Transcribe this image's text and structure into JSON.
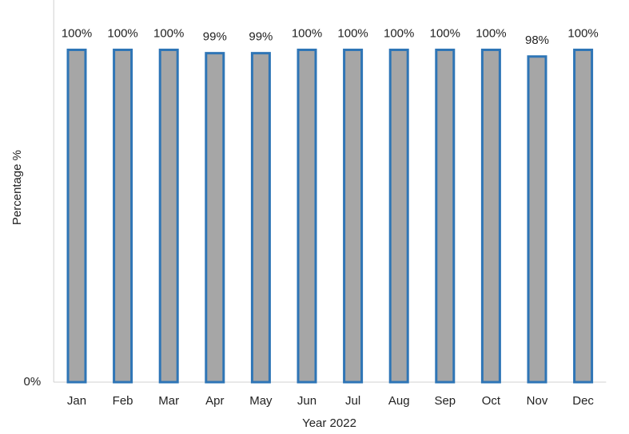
{
  "chart_data": {
    "type": "bar",
    "xlabel": "Year 2022",
    "ylabel": "Percentage %",
    "categories": [
      "Jan",
      "Feb",
      "Mar",
      "Apr",
      "May",
      "Jun",
      "Jul",
      "Aug",
      "Sep",
      "Oct",
      "Nov",
      "Dec"
    ],
    "values": [
      100,
      100,
      100,
      99,
      99,
      100,
      100,
      100,
      100,
      100,
      98,
      100
    ],
    "value_labels": [
      "100%",
      "100%",
      "100%",
      "99%",
      "99%",
      "100%",
      "100%",
      "100%",
      "100%",
      "100%",
      "98%",
      "100%"
    ],
    "color": "#a6a6a6",
    "edge_color": "#2e75b6",
    "ylim": [
      0,
      115
    ],
    "yticks": [
      {
        "value": 0,
        "label": "0%"
      }
    ],
    "grid": false
  }
}
